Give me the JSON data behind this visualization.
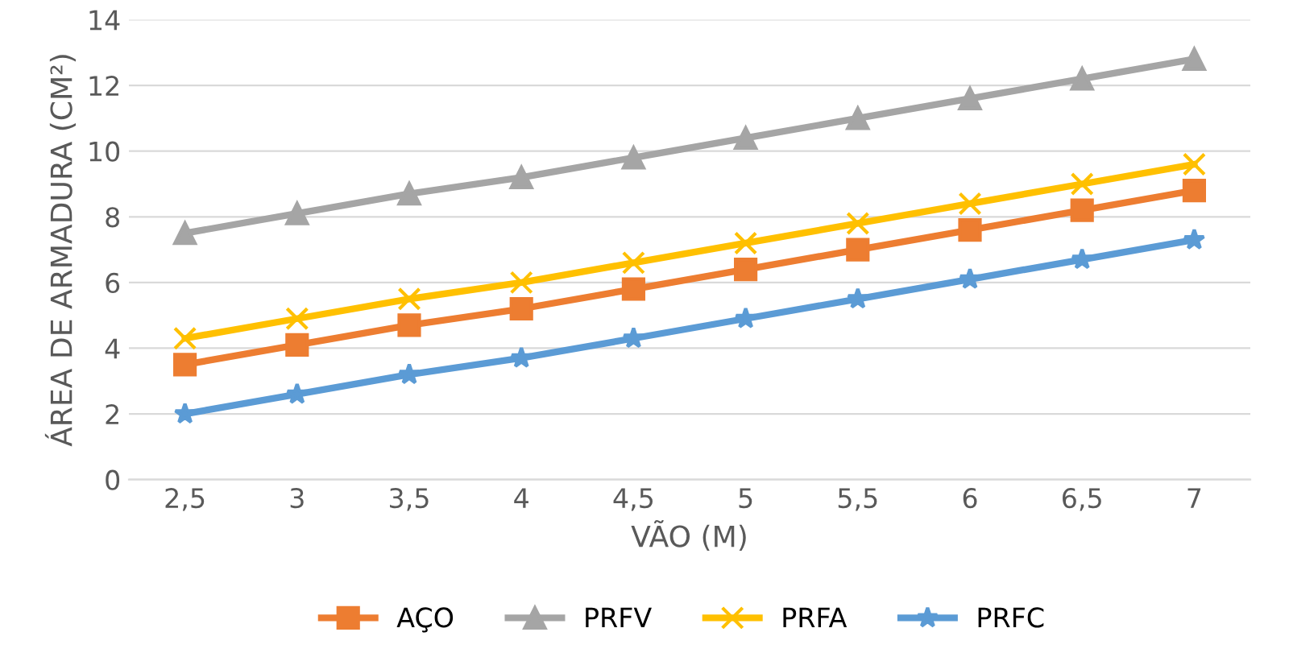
{
  "chart_data": {
    "type": "line",
    "xlabel": "VÃO (M)",
    "ylabel": "ÁREA DE ARMADURA (CM²)",
    "categories": [
      "2,5",
      "3",
      "3,5",
      "4",
      "4,5",
      "5",
      "5,5",
      "6",
      "6,5",
      "7"
    ],
    "series": [
      {
        "name": "AÇO",
        "color": "#ed7d31",
        "marker": "square",
        "values": [
          3.5,
          4.1,
          4.7,
          5.2,
          5.8,
          6.4,
          7.0,
          7.6,
          8.2,
          8.8
        ]
      },
      {
        "name": "PRFV",
        "color": "#a5a5a5",
        "marker": "triangle",
        "values": [
          7.5,
          8.1,
          8.7,
          9.2,
          9.8,
          10.4,
          11.0,
          11.6,
          12.2,
          12.8
        ]
      },
      {
        "name": "PRFA",
        "color": "#ffc000",
        "marker": "cross",
        "values": [
          4.3,
          4.9,
          5.5,
          6.0,
          6.6,
          7.2,
          7.8,
          8.4,
          9.0,
          9.6
        ]
      },
      {
        "name": "PRFC",
        "color": "#5b9bd5",
        "marker": "star",
        "values": [
          2.0,
          2.6,
          3.2,
          3.7,
          4.3,
          4.9,
          5.5,
          6.1,
          6.7,
          7.3
        ]
      }
    ],
    "ylim": [
      0,
      14
    ],
    "yticks": [
      0,
      2,
      4,
      6,
      8,
      10,
      12,
      14
    ],
    "grid": "y",
    "legend": "bottom",
    "line_style": "solid"
  }
}
